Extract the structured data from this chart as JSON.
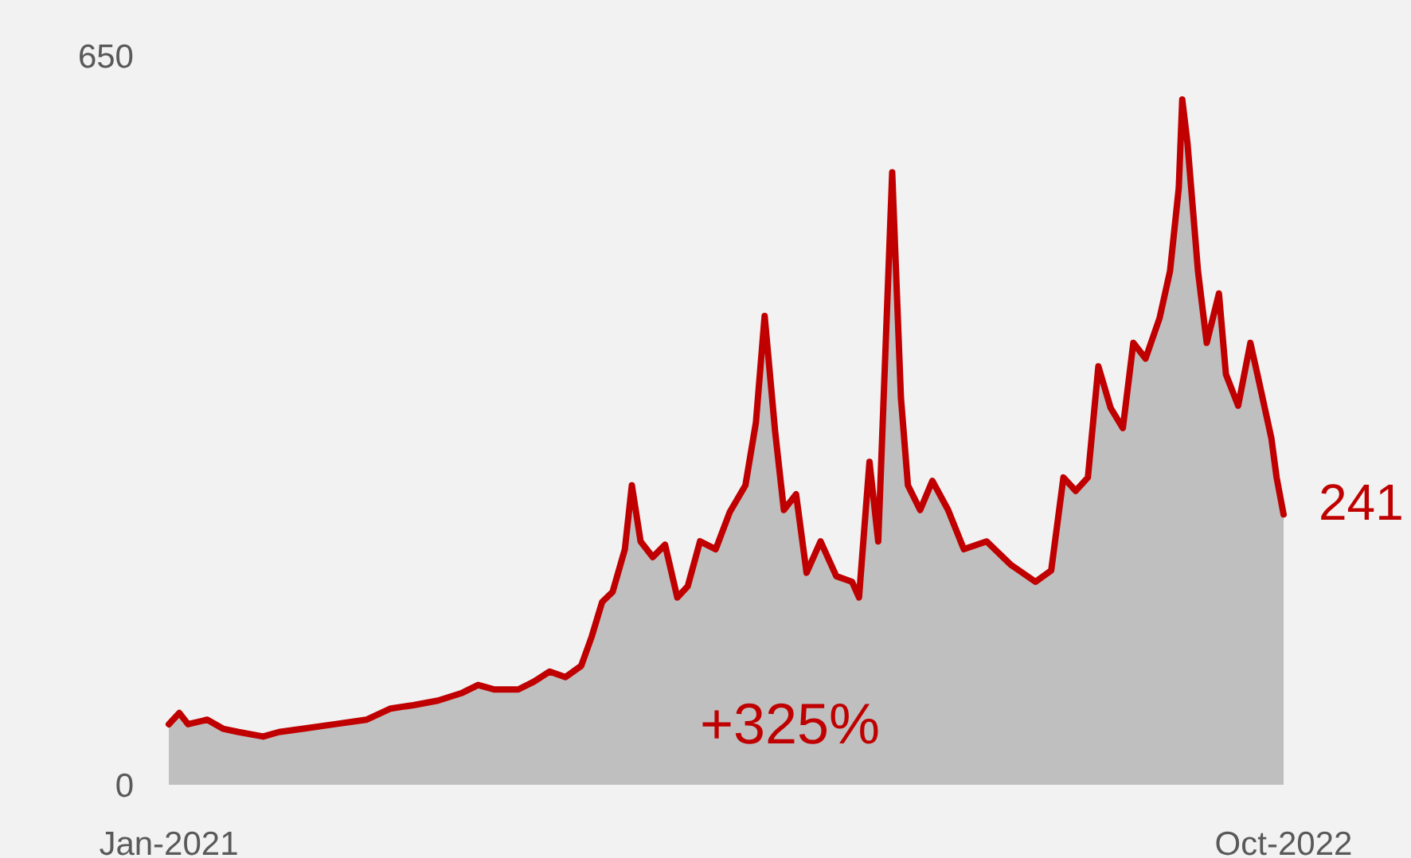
{
  "chart_data": {
    "type": "area",
    "x": [
      "2021-01-01",
      "2021-01-07",
      "2021-01-12",
      "2021-01-23",
      "2021-02-01",
      "2021-02-10",
      "2021-02-24",
      "2021-03-05",
      "2021-03-19",
      "2021-04-06",
      "2021-04-24",
      "2021-05-08",
      "2021-05-21",
      "2021-06-04",
      "2021-06-18",
      "2021-06-27",
      "2021-07-06",
      "2021-07-20",
      "2021-07-29",
      "2021-08-07",
      "2021-08-16",
      "2021-08-25",
      "2021-08-31",
      "2021-09-06",
      "2021-09-12",
      "2021-09-19",
      "2021-09-23",
      "2021-09-28",
      "2021-10-05",
      "2021-10-12",
      "2021-10-19",
      "2021-10-25",
      "2021-11-01",
      "2021-11-10",
      "2021-11-18",
      "2021-11-27",
      "2021-12-03",
      "2021-12-08",
      "2021-12-14",
      "2021-12-19",
      "2021-12-26",
      "2022-01-01",
      "2022-01-09",
      "2022-01-18",
      "2022-01-27",
      "2022-01-31",
      "2022-02-06",
      "2022-02-11",
      "2022-02-19",
      "2022-02-24",
      "2022-02-28",
      "2022-03-07",
      "2022-03-14",
      "2022-03-23",
      "2022-04-01",
      "2022-04-14",
      "2022-04-28",
      "2022-05-12",
      "2022-05-21",
      "2022-05-28",
      "2022-06-04",
      "2022-06-11",
      "2022-06-17",
      "2022-06-24",
      "2022-07-01",
      "2022-07-07",
      "2022-07-14",
      "2022-07-22",
      "2022-07-28",
      "2022-08-02",
      "2022-08-04",
      "2022-08-07",
      "2022-08-13",
      "2022-08-18",
      "2022-08-25",
      "2022-08-29",
      "2022-09-05",
      "2022-09-12",
      "2022-09-16",
      "2022-09-24",
      "2022-09-27",
      "2022-10-01"
    ],
    "series": [
      {
        "color": "#c00000",
        "values": [
          54,
          64,
          54,
          58,
          50,
          47,
          43,
          47,
          50,
          54,
          58,
          68,
          71,
          75,
          82,
          89,
          85,
          85,
          92,
          101,
          96,
          106,
          132,
          163,
          172,
          210,
          267,
          217,
          203,
          214,
          167,
          177,
          217,
          210,
          243,
          267,
          323,
          418,
          315,
          245,
          259,
          189,
          217,
          186,
          181,
          167,
          288,
          217,
          546,
          345,
          267,
          245,
          271,
          245,
          210,
          217,
          196,
          181,
          191,
          274,
          262,
          274,
          373,
          336,
          318,
          394,
          380,
          416,
          458,
          532,
          611,
          572,
          458,
          394,
          438,
          366,
          338,
          394,
          366,
          309,
          274,
          241
        ]
      }
    ],
    "xlim": [
      "2021-01-01",
      "2022-10-01"
    ],
    "xticks": [
      {
        "value": "2021-01-01",
        "label": "Jan-2021"
      },
      {
        "value": "2022-10-01",
        "label": "Oct-2022"
      }
    ],
    "ylim": [
      0,
      650
    ],
    "yticks": [
      0,
      650
    ],
    "annotations": [
      "+325%",
      {
        "text": "241",
        "x": "2022-10-01",
        "y": 241
      }
    ]
  }
}
